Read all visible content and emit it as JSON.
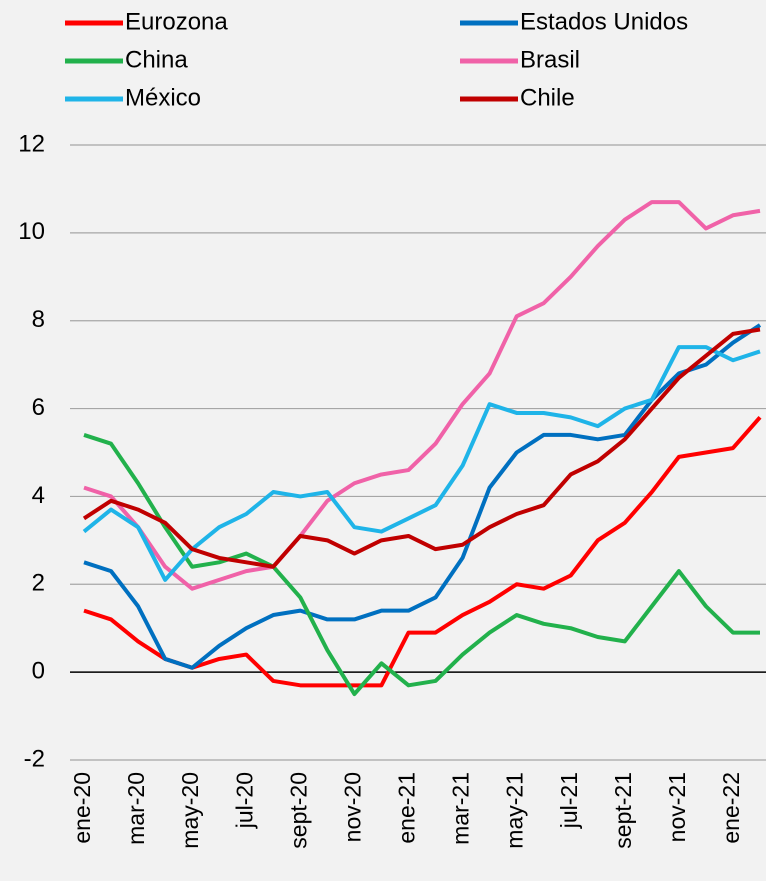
{
  "chart_data": {
    "type": "line",
    "categories": [
      "ene-20",
      null,
      "mar-20",
      null,
      "may-20",
      null,
      "jul-20",
      null,
      "sept-20",
      null,
      "nov-20",
      null,
      "ene-21",
      null,
      "mar-21",
      null,
      "may-21",
      null,
      "jul-21",
      null,
      "sept-21",
      null,
      "nov-21",
      null,
      "ene-22",
      null
    ],
    "series": [
      {
        "name": "Eurozona",
        "color": "#ff0000",
        "values": [
          1.4,
          1.2,
          0.7,
          0.3,
          0.1,
          0.3,
          0.4,
          -0.2,
          -0.3,
          -0.3,
          -0.3,
          -0.3,
          0.9,
          0.9,
          1.3,
          1.6,
          2.0,
          1.9,
          2.2,
          3.0,
          3.4,
          4.1,
          4.9,
          5.0,
          5.1,
          5.8
        ]
      },
      {
        "name": "Estados Unidos",
        "color": "#0070c0",
        "values": [
          2.5,
          2.3,
          1.5,
          0.3,
          0.1,
          0.6,
          1.0,
          1.3,
          1.4,
          1.2,
          1.2,
          1.4,
          1.4,
          1.7,
          2.6,
          4.2,
          5.0,
          5.4,
          5.4,
          5.3,
          5.4,
          6.2,
          6.8,
          7.0,
          7.5,
          7.9
        ]
      },
      {
        "name": "China",
        "color": "#22b14c",
        "values": [
          5.4,
          5.2,
          4.3,
          3.3,
          2.4,
          2.5,
          2.7,
          2.4,
          1.7,
          0.5,
          -0.5,
          0.2,
          -0.3,
          -0.2,
          0.4,
          0.9,
          1.3,
          1.1,
          1.0,
          0.8,
          0.7,
          1.5,
          2.3,
          1.5,
          0.9,
          0.9
        ]
      },
      {
        "name": "Brasil",
        "color": "#f062a8",
        "values": [
          4.2,
          4.0,
          3.3,
          2.4,
          1.9,
          2.1,
          2.3,
          2.4,
          3.1,
          3.9,
          4.3,
          4.5,
          4.6,
          5.2,
          6.1,
          6.8,
          8.1,
          8.4,
          9.0,
          9.7,
          10.3,
          10.7,
          10.7,
          10.1,
          10.4,
          10.5
        ]
      },
      {
        "name": "México",
        "color": "#1fb4e8",
        "values": [
          3.2,
          3.7,
          3.3,
          2.1,
          2.8,
          3.3,
          3.6,
          4.1,
          4.0,
          4.1,
          3.3,
          3.2,
          3.5,
          3.8,
          4.7,
          6.1,
          5.9,
          5.9,
          5.8,
          5.6,
          6.0,
          6.2,
          7.4,
          7.4,
          7.1,
          7.3
        ]
      },
      {
        "name": "Chile",
        "color": "#c00000",
        "values": [
          3.5,
          3.9,
          3.7,
          3.4,
          2.8,
          2.6,
          2.5,
          2.4,
          3.1,
          3.0,
          2.7,
          3.0,
          3.1,
          2.8,
          2.9,
          3.3,
          3.6,
          3.8,
          4.5,
          4.8,
          5.3,
          6.0,
          6.7,
          7.2,
          7.7,
          7.8
        ]
      }
    ],
    "ylim": [
      -2,
      12
    ],
    "yticks": [
      -2,
      0,
      2,
      4,
      6,
      8,
      10,
      12
    ],
    "grid": true
  }
}
